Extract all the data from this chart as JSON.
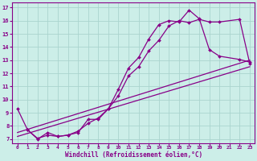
{
  "xlabel": "Windchill (Refroidissement éolien,°C)",
  "bg_color": "#cceee8",
  "grid_color": "#aad4ce",
  "line_color": "#880088",
  "xlim": [
    -0.5,
    23.5
  ],
  "ylim": [
    6.7,
    17.4
  ],
  "yticks": [
    7,
    8,
    9,
    10,
    11,
    12,
    13,
    14,
    15,
    16,
    17
  ],
  "xticks": [
    0,
    1,
    2,
    3,
    4,
    5,
    6,
    7,
    8,
    9,
    10,
    11,
    12,
    13,
    14,
    15,
    16,
    17,
    18,
    19,
    20,
    21,
    22,
    23
  ],
  "line1": {
    "x": [
      0,
      1,
      2,
      3,
      4,
      5,
      6,
      7,
      8,
      9,
      10,
      11,
      12,
      13,
      14,
      15,
      16,
      17,
      18,
      19,
      20,
      22,
      23
    ],
    "y": [
      9.3,
      7.7,
      7.0,
      7.5,
      7.2,
      7.3,
      7.5,
      8.5,
      8.5,
      9.3,
      10.8,
      12.4,
      13.2,
      14.6,
      15.7,
      16.0,
      15.9,
      16.8,
      16.15,
      13.8,
      13.3,
      13.05,
      12.85
    ]
  },
  "line2": {
    "x": [
      1,
      2,
      3,
      4,
      5,
      6,
      7,
      8,
      9,
      10,
      11,
      12,
      13,
      14,
      15,
      16,
      17,
      18,
      19,
      20,
      22,
      23
    ],
    "y": [
      7.7,
      7.05,
      7.3,
      7.2,
      7.3,
      7.6,
      8.2,
      8.6,
      9.3,
      10.3,
      11.8,
      12.5,
      13.7,
      14.5,
      15.6,
      16.0,
      15.85,
      16.1,
      15.9,
      15.9,
      16.1,
      12.75
    ]
  },
  "straight1": {
    "x": [
      0,
      23
    ],
    "y": [
      7.5,
      13.0
    ]
  },
  "straight2": {
    "x": [
      0,
      23
    ],
    "y": [
      7.2,
      12.5
    ]
  }
}
